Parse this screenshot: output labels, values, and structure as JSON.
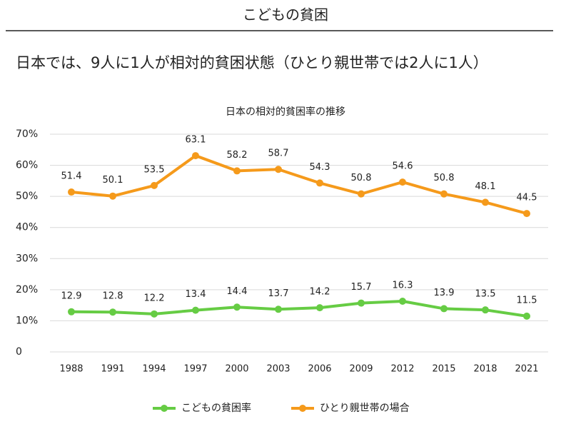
{
  "header": {
    "title": "こどもの貧困",
    "subtitle": "日本では、9人に1人が相対的貧困状態（ひとり親世帯では2人に1人）"
  },
  "chart_data": {
    "type": "line",
    "title": "日本の相対的貧困率の推移",
    "categories": [
      "1988",
      "1991",
      "1994",
      "1997",
      "2000",
      "2003",
      "2006",
      "2009",
      "2012",
      "2015",
      "2018",
      "2021"
    ],
    "series": [
      {
        "name": "こどもの貧困率",
        "color": "#66cc44",
        "values": [
          12.9,
          12.8,
          12.2,
          13.4,
          14.4,
          13.7,
          14.2,
          15.7,
          16.3,
          13.9,
          13.5,
          11.5
        ]
      },
      {
        "name": "ひとり親世帯の場合",
        "color": "#f59a1b",
        "values": [
          51.4,
          50.1,
          53.5,
          63.1,
          58.2,
          58.7,
          54.3,
          50.8,
          54.6,
          50.8,
          48.1,
          44.5
        ]
      }
    ],
    "ylim": [
      0,
      70
    ],
    "yticks": [
      0,
      {
        "value": 10,
        "label": "10%"
      },
      {
        "value": 20,
        "label": "20%"
      },
      {
        "value": 30,
        "label": "30%"
      },
      {
        "value": 40,
        "label": "40%"
      },
      {
        "value": 50,
        "label": "50%"
      },
      {
        "value": 60,
        "label": "60%"
      },
      {
        "value": 70,
        "label": "70%"
      }
    ],
    "grid": true,
    "legend": "bottom"
  }
}
